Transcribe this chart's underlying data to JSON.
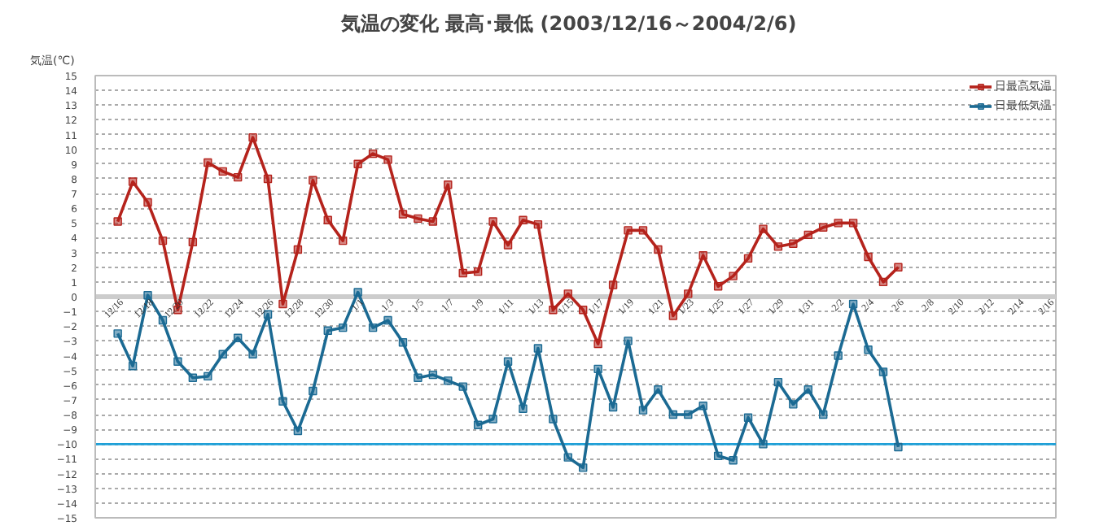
{
  "chart_data": {
    "type": "line",
    "title": "気温の変化  最高･最低  (2003/12/16～2004/2/6)",
    "ylabel": "気温(℃)",
    "categories": [
      "12/16",
      null,
      "12/18",
      null,
      "12/20",
      null,
      "12/22",
      null,
      "12/24",
      null,
      "12/26",
      null,
      "12/28",
      null,
      "12/30",
      null,
      "1/1",
      null,
      "1/3",
      null,
      "1/5",
      null,
      "1/7",
      null,
      "1/9",
      null,
      "1/11",
      null,
      "1/13",
      null,
      "1/15",
      null,
      "1/17",
      null,
      "1/19",
      null,
      "1/21",
      null,
      "1/23",
      null,
      "1/25",
      null,
      "1/27",
      null,
      "1/29",
      null,
      "1/31",
      null,
      "2/2",
      null,
      "2/4",
      null,
      "2/6",
      null,
      "2/8",
      null,
      "2/10",
      null,
      "2/12",
      null,
      "2/14",
      null,
      "2/16"
    ],
    "series": [
      {
        "name": "日最高気温",
        "color": "#b5231c",
        "values": [
          5.1,
          7.8,
          6.4,
          3.8,
          -0.9,
          3.7,
          9.1,
          8.5,
          8.1,
          10.8,
          8.0,
          -0.5,
          3.2,
          7.9,
          5.2,
          3.8,
          9.0,
          9.7,
          9.3,
          5.6,
          5.3,
          5.1,
          7.6,
          1.6,
          1.7,
          5.1,
          3.5,
          5.2,
          4.9,
          -0.9,
          0.2,
          -0.9,
          -3.2,
          0.8,
          4.5,
          4.5,
          3.2,
          -1.3,
          0.2,
          2.8,
          0.7,
          1.4,
          2.6,
          4.6,
          3.4,
          3.6,
          4.2,
          4.7,
          5.0,
          5.0,
          2.7,
          1.0,
          2.0,
          null,
          null,
          null,
          null,
          null,
          null,
          null,
          null,
          null,
          null
        ]
      },
      {
        "name": "日最低気温",
        "color": "#1b6a93",
        "values": [
          -2.5,
          -4.7,
          0.1,
          -1.6,
          -4.4,
          -5.5,
          -5.4,
          -3.9,
          -2.8,
          -3.9,
          -1.2,
          -7.1,
          -9.1,
          -6.4,
          -2.3,
          -2.1,
          0.3,
          -2.1,
          -1.6,
          -3.1,
          -5.5,
          -5.3,
          -5.7,
          -6.1,
          -8.7,
          -8.3,
          -4.4,
          -7.6,
          -3.5,
          -8.3,
          -10.9,
          -11.6,
          -4.9,
          -7.5,
          -3.0,
          -7.7,
          -6.3,
          -8.0,
          -8.0,
          -7.4,
          -10.8,
          -11.1,
          -8.2,
          -10.0,
          -5.8,
          -7.3,
          -6.3,
          -8.0,
          -4.0,
          -0.5,
          -3.6,
          -5.1,
          -10.2,
          null,
          null,
          null,
          null,
          null,
          null,
          null,
          null,
          null,
          null
        ]
      }
    ],
    "ylim": [
      -15,
      15
    ],
    "yticks": [
      -15,
      -14,
      -13,
      -12,
      -11,
      -10,
      -9,
      -8,
      -7,
      -6,
      -5,
      -4,
      -3,
      -2,
      -1,
      0,
      1,
      2,
      3,
      4,
      5,
      6,
      7,
      8,
      9,
      10,
      11,
      12,
      13,
      14,
      15
    ],
    "ref_lines": [
      {
        "axis": "y",
        "value": -10,
        "label": null,
        "color": "#1ea0d8"
      }
    ],
    "grid": "y",
    "legend": "top right",
    "marker": "square",
    "line_style": "solid"
  }
}
